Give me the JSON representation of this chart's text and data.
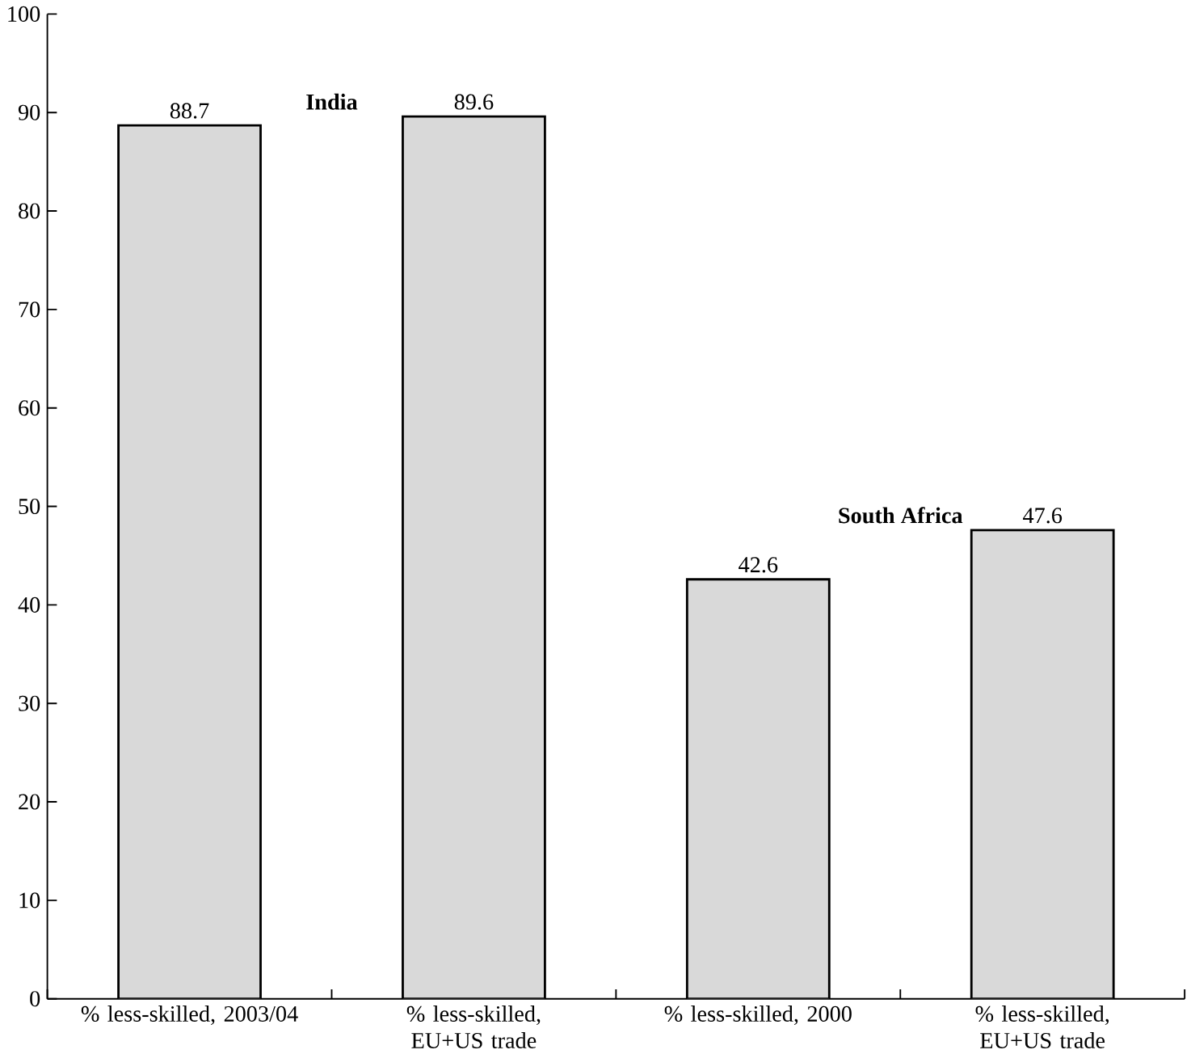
{
  "chart_data": {
    "type": "bar",
    "categories": [
      "% less-skilled, 2003/04",
      "% less-skilled, EU+US trade",
      "% less-skilled, 2000",
      "% less-skilled, EU+US trade"
    ],
    "values": [
      88.7,
      89.6,
      42.6,
      47.6
    ],
    "color": "#d9d9d9",
    "data_labels": true,
    "ylim": [
      0,
      100
    ],
    "yticks": [
      0,
      10,
      20,
      30,
      40,
      50,
      60,
      70,
      80,
      90,
      100
    ],
    "grid": false,
    "annotations": [
      "**India**",
      "**South Africa**"
    ]
  }
}
